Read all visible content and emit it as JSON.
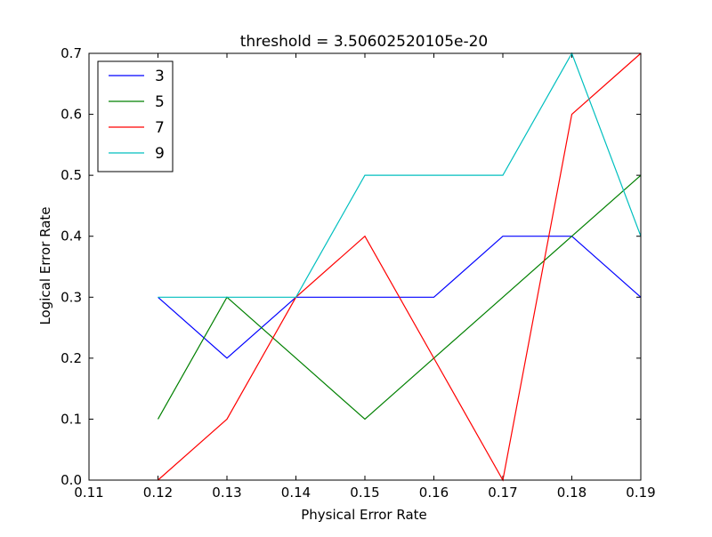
{
  "chart_data": {
    "type": "line",
    "title": "threshold = 3.50602520105e-20",
    "xlabel": "Physical Error Rate",
    "ylabel": "Logical Error Rate",
    "xlim": [
      0.11,
      0.19
    ],
    "ylim": [
      0.0,
      0.7
    ],
    "x_ticks": [
      "0.11",
      "0.12",
      "0.13",
      "0.14",
      "0.15",
      "0.16",
      "0.17",
      "0.18",
      "0.19"
    ],
    "y_ticks": [
      "0.0",
      "0.1",
      "0.2",
      "0.3",
      "0.4",
      "0.5",
      "0.6",
      "0.7"
    ],
    "x": [
      0.12,
      0.13,
      0.14,
      0.15,
      0.16,
      0.17,
      0.18,
      0.19
    ],
    "grid": false,
    "legend_position": "top-left",
    "series": [
      {
        "name": "3",
        "color": "#0000ff",
        "values": [
          0.3,
          0.2,
          0.3,
          0.3,
          0.3,
          0.4,
          0.4,
          0.3
        ]
      },
      {
        "name": "5",
        "color": "#008000",
        "values": [
          0.1,
          0.3,
          0.2,
          0.1,
          0.2,
          0.3,
          0.4,
          0.5
        ]
      },
      {
        "name": "7",
        "color": "#ff0000",
        "values": [
          0.0,
          0.1,
          0.3,
          0.4,
          0.2,
          0.0,
          0.6,
          0.7
        ]
      },
      {
        "name": "9",
        "color": "#00bfbf",
        "values": [
          0.3,
          0.3,
          0.3,
          0.5,
          0.5,
          0.5,
          0.7,
          0.4
        ]
      }
    ]
  }
}
